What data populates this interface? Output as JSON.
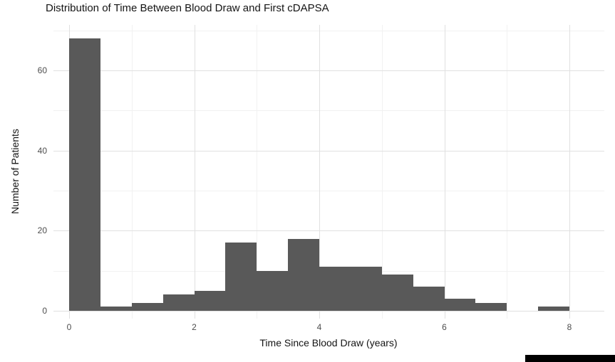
{
  "chart_data": {
    "type": "bar",
    "title": "Distribution of Time Between Blood Draw and First cDAPSA",
    "xlabel": "Time Since Blood Draw (years)",
    "ylabel": "Number of Patients",
    "bin_width": 0.5,
    "bins_start": [
      0,
      0.5,
      1,
      1.5,
      2,
      2.5,
      3,
      3.5,
      4,
      4.5,
      5,
      5.5,
      6,
      6.5,
      7,
      7.5
    ],
    "values": [
      68,
      1,
      2,
      4,
      5,
      17,
      10,
      18,
      11,
      11,
      9,
      6,
      3,
      2,
      0,
      1
    ],
    "x_ticks": [
      0,
      2,
      4,
      6,
      8
    ],
    "y_ticks": [
      0,
      20,
      40,
      60
    ],
    "x_minor_gridlines": [
      1,
      3,
      5,
      7
    ],
    "y_minor_gridlines": [
      10,
      30,
      50,
      70
    ],
    "xlim": [
      -0.25,
      8.55
    ],
    "ylim": [
      0,
      71
    ],
    "grid": "on",
    "legend": "none",
    "bar_color": "#595959",
    "grid_major_color": "#e0e0e0",
    "grid_minor_color": "#f1f1f1",
    "axis_text_color": "#4d4d4d",
    "title_color": "#141414"
  },
  "decor": {
    "bottom_right_strip_color": "#000000"
  }
}
